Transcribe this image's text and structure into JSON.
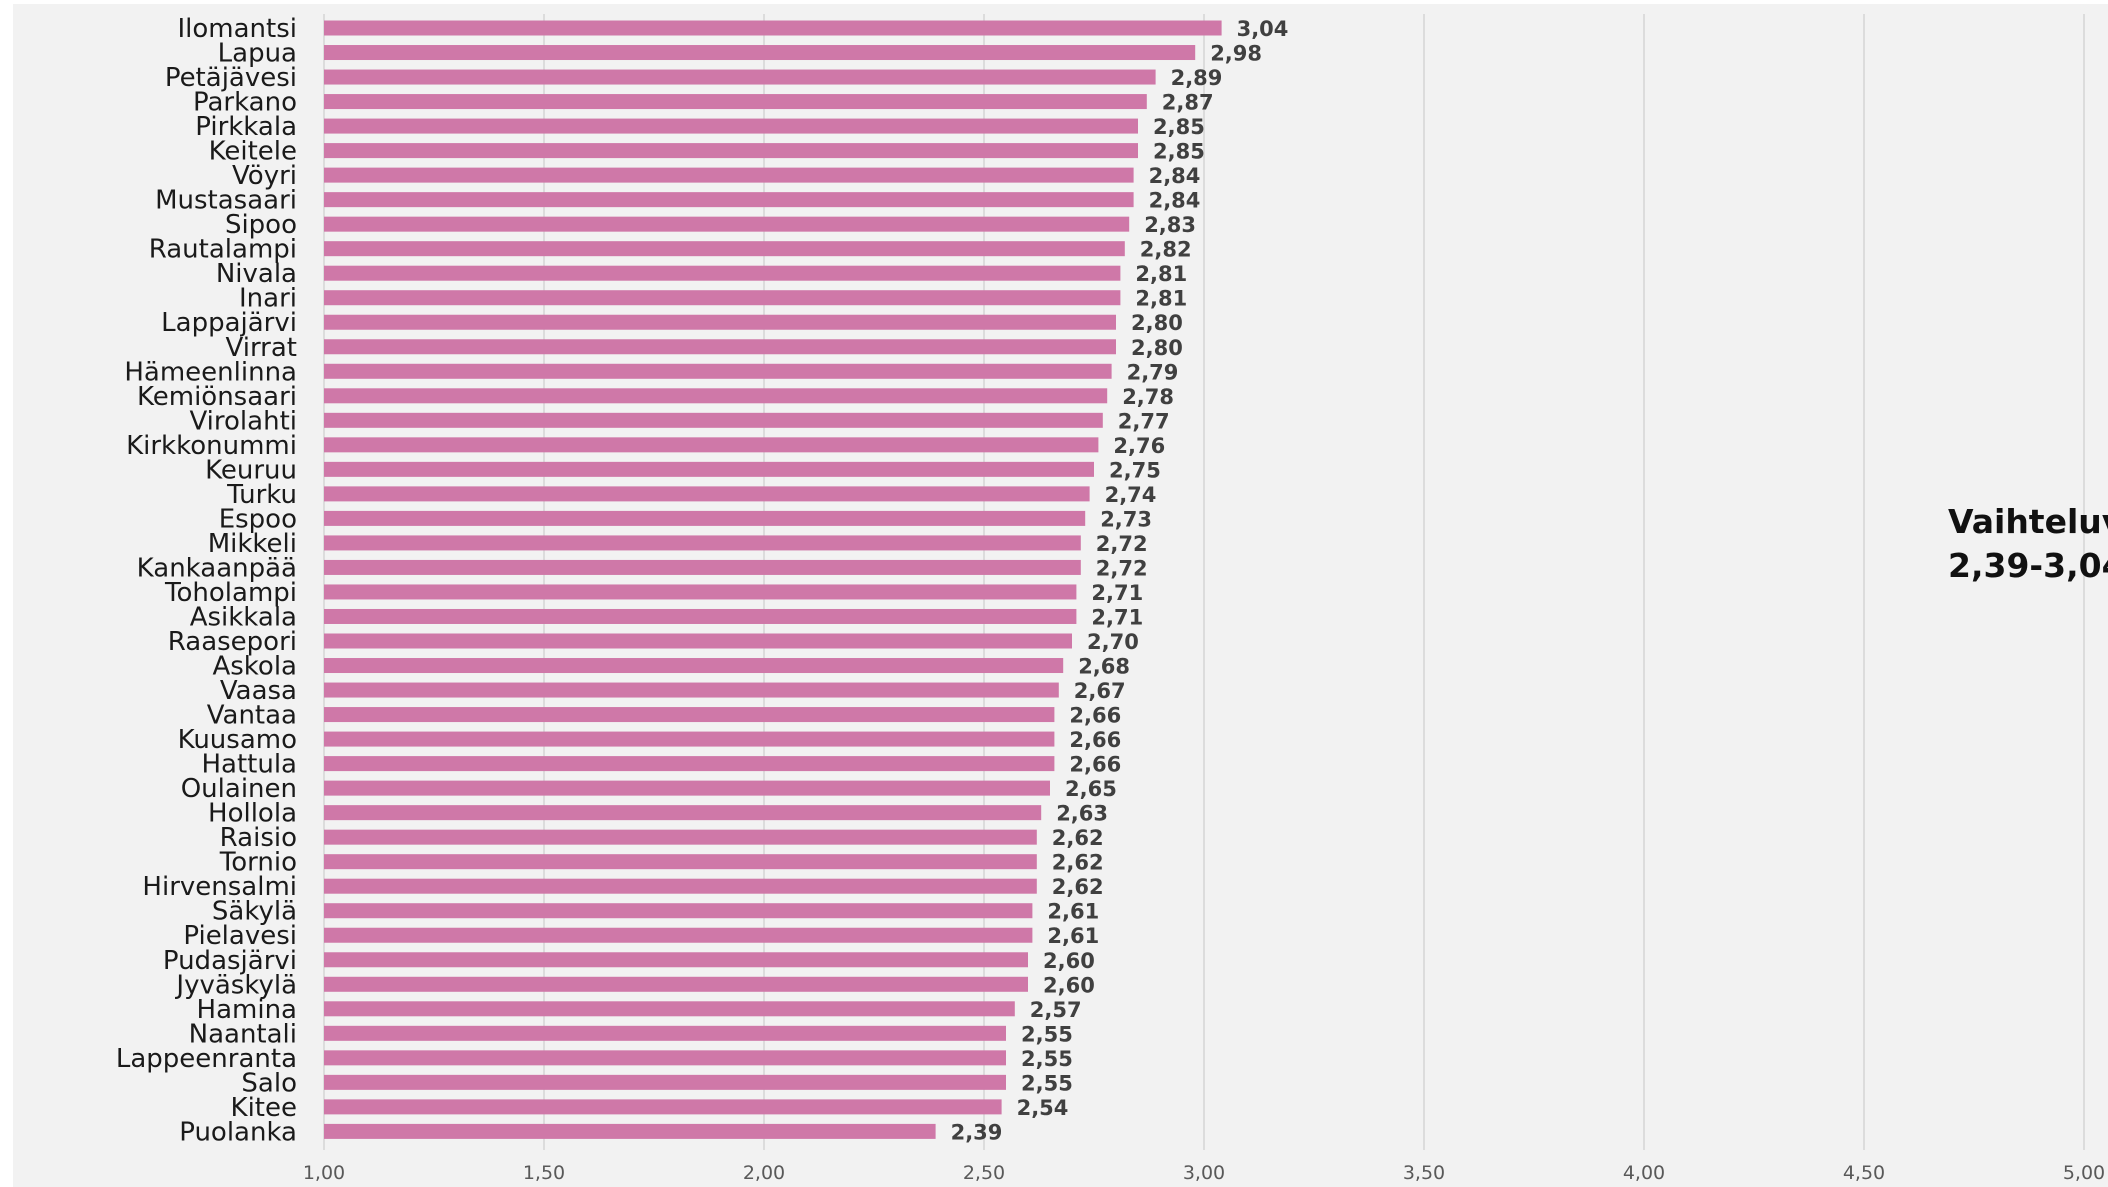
{
  "chart_data": {
    "type": "bar",
    "orientation": "horizontal",
    "title": "",
    "xlabel": "",
    "ylabel": "",
    "xlim": [
      1.0,
      5.0
    ],
    "xticks": [
      "1,00",
      "1,50",
      "2,00",
      "2,50",
      "3,00",
      "3,50",
      "4,00",
      "4,50",
      "5,00"
    ],
    "grid": "vertical",
    "bar_color": "#cf78a8",
    "categories": [
      "Ilomantsi",
      "Lapua",
      "Petäjävesi",
      "Parkano",
      "Pirkkala",
      "Keitele",
      "Vöyri",
      "Mustasaari",
      "Sipoo",
      "Rautalampi",
      "Nivala",
      "Inari",
      "Lappajärvi",
      "Virrat",
      "Hämeenlinna",
      "Kemiönsaari",
      "Virolahti",
      "Kirkkonummi",
      "Keuruu",
      "Turku",
      "Espoo",
      "Mikkeli",
      "Kankaanpää",
      "Toholampi",
      "Asikkala",
      "Raasepori",
      "Askola",
      "Vaasa",
      "Vantaa",
      "Kuusamo",
      "Hattula",
      "Oulainen",
      "Hollola",
      "Raisio",
      "Tornio",
      "Hirvensalmi",
      "Säkylä",
      "Pielavesi",
      "Pudasjärvi",
      "Jyväskylä",
      "Hamina",
      "Naantali",
      "Lappeenranta",
      "Salo",
      "Kitee",
      "Puolanka"
    ],
    "values": [
      3.04,
      2.98,
      2.89,
      2.87,
      2.85,
      2.85,
      2.84,
      2.84,
      2.83,
      2.82,
      2.81,
      2.81,
      2.8,
      2.8,
      2.79,
      2.78,
      2.77,
      2.76,
      2.75,
      2.74,
      2.73,
      2.72,
      2.72,
      2.71,
      2.71,
      2.7,
      2.68,
      2.67,
      2.66,
      2.66,
      2.66,
      2.65,
      2.63,
      2.62,
      2.62,
      2.62,
      2.61,
      2.61,
      2.6,
      2.6,
      2.57,
      2.55,
      2.55,
      2.55,
      2.54,
      2.39
    ],
    "value_labels": [
      "3,04",
      "2,98",
      "2,89",
      "2,87",
      "2,85",
      "2,85",
      "2,84",
      "2,84",
      "2,83",
      "2,82",
      "2,81",
      "2,81",
      "2,80",
      "2,80",
      "2,79",
      "2,78",
      "2,77",
      "2,76",
      "2,75",
      "2,74",
      "2,73",
      "2,72",
      "2,72",
      "2,71",
      "2,71",
      "2,70",
      "2,68",
      "2,67",
      "2,66",
      "2,66",
      "2,66",
      "2,65",
      "2,63",
      "2,62",
      "2,62",
      "2,62",
      "2,61",
      "2,61",
      "2,60",
      "2,60",
      "2,57",
      "2,55",
      "2,55",
      "2,55",
      "2,54",
      "2,39"
    ]
  },
  "annotation": {
    "line1": "Vaihteluv",
    "line2": "2,39-3,04"
  }
}
